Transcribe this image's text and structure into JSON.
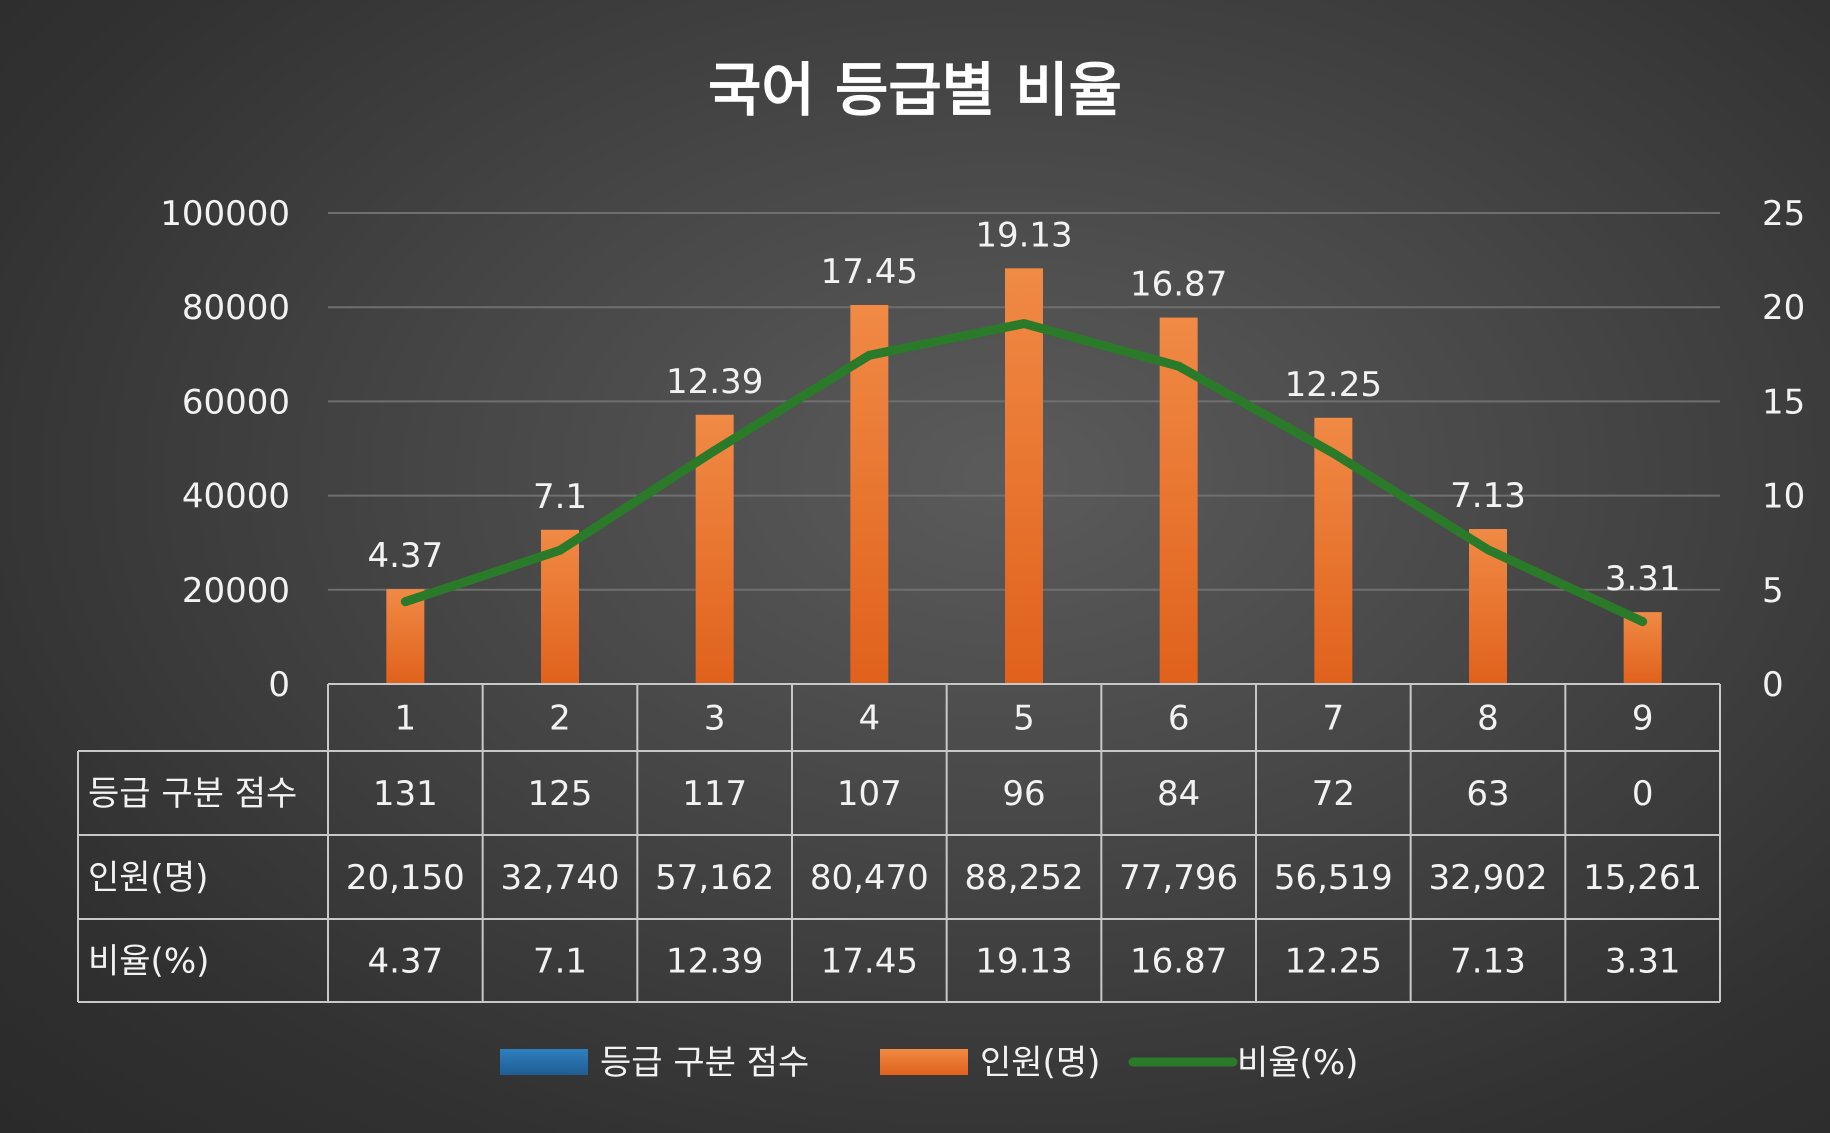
{
  "chart_data": {
    "type": "bar",
    "title": "국어 등급별 비율",
    "categories": [
      "1",
      "2",
      "3",
      "4",
      "5",
      "6",
      "7",
      "8",
      "9"
    ],
    "y_left": {
      "ticks": [
        "0",
        "20000",
        "40000",
        "60000",
        "80000",
        "100000"
      ],
      "range": [
        0,
        100000
      ]
    },
    "y_right": {
      "ticks": [
        "0",
        "5",
        "10",
        "15",
        "20",
        "25"
      ],
      "range": [
        0,
        25
      ]
    },
    "grid": true,
    "legend_position": "bottom",
    "series": [
      {
        "name": "등급 구분 점수",
        "type": "bar",
        "color": "#2e75b6",
        "values": [
          131,
          125,
          117,
          107,
          96,
          84,
          72,
          63,
          0
        ],
        "table_text": [
          "131",
          "125",
          "117",
          "107",
          "96",
          "84",
          "72",
          "63",
          "0"
        ]
      },
      {
        "name": "인원(명)",
        "type": "bar",
        "axis": "left",
        "color": "#ed7d31",
        "values": [
          20150,
          32740,
          57162,
          80470,
          88252,
          77796,
          56519,
          32902,
          15261
        ],
        "table_text": [
          "20,150",
          "32,740",
          "57,162",
          "80,470",
          "88,252",
          "77,796",
          "56,519",
          "32,902",
          "15,261"
        ]
      },
      {
        "name": "비율(%)",
        "type": "line",
        "axis": "right",
        "color": "#2a7a2a",
        "values": [
          4.37,
          7.1,
          12.39,
          17.45,
          19.13,
          16.87,
          12.25,
          7.13,
          3.31
        ],
        "table_text": [
          "4.37",
          "7.1",
          "12.39",
          "17.45",
          "19.13",
          "16.87",
          "12.25",
          "7.13",
          "3.31"
        ]
      }
    ]
  }
}
